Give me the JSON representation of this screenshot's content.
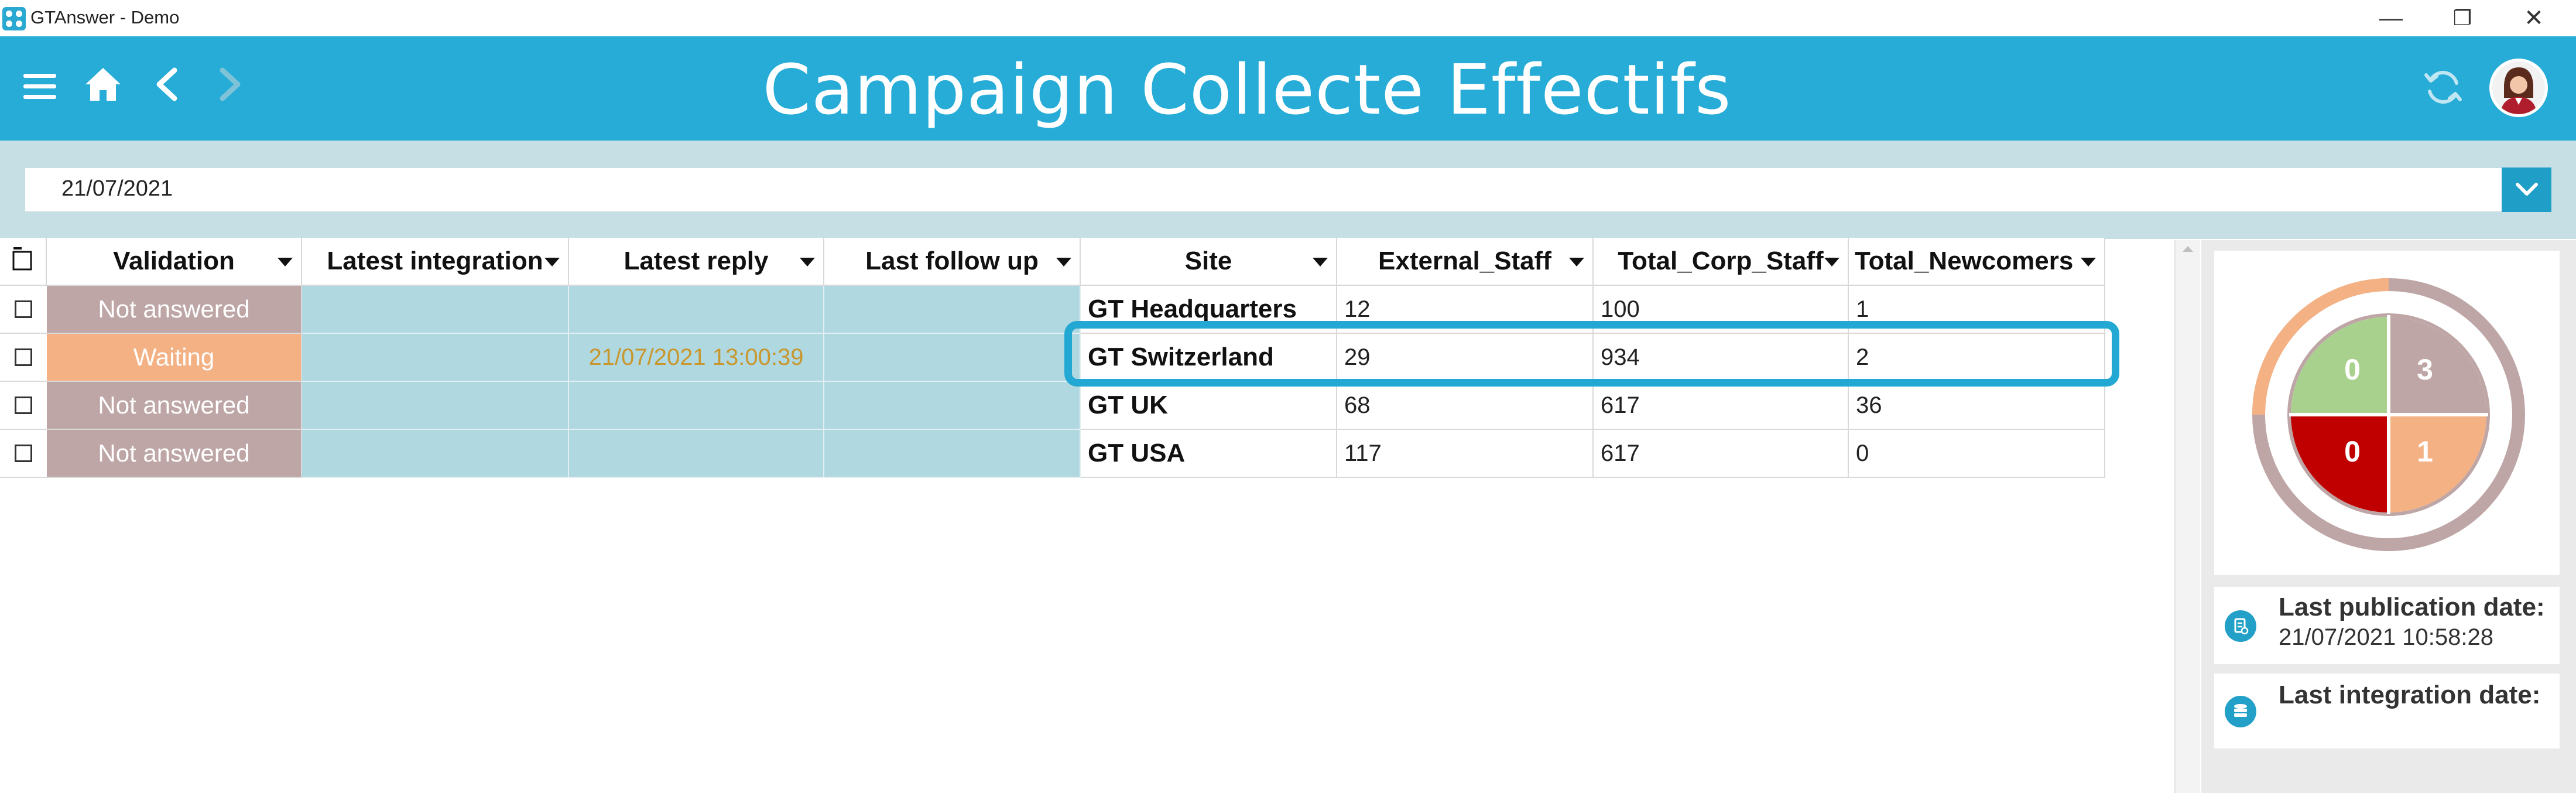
{
  "window": {
    "title": "GTAnswer - Demo",
    "minimize_glyph": "—",
    "restore_glyph": "❐",
    "close_glyph": "✕"
  },
  "header": {
    "title": "Campaign Collecte Effectifs",
    "icons": [
      "menu-icon",
      "home-icon",
      "back-icon",
      "forward-icon",
      "refresh-icon",
      "avatar"
    ]
  },
  "filter": {
    "date_value": "21/07/2021"
  },
  "table": {
    "columns": [
      "Validation",
      "Latest integration",
      "Latest reply",
      "Last follow up",
      "Site",
      "External_Staff",
      "Total_Corp_Staff",
      "Total_Newcomers"
    ],
    "rows": [
      {
        "validation": "Not answered",
        "status": "not-answered",
        "latest_integration": "",
        "latest_reply": "",
        "last_follow_up": "",
        "site": "GT Headquarters",
        "external_staff": "12",
        "total_corp_staff": "100",
        "total_newcomers": "1"
      },
      {
        "validation": "Waiting",
        "status": "waiting",
        "latest_integration": "",
        "latest_reply": "21/07/2021 13:00:39",
        "last_follow_up": "",
        "site": "GT Switzerland",
        "external_staff": "29",
        "total_corp_staff": "934",
        "total_newcomers": "2"
      },
      {
        "validation": "Not answered",
        "status": "not-answered",
        "latest_integration": "",
        "latest_reply": "",
        "last_follow_up": "",
        "site": "GT UK",
        "external_staff": "68",
        "total_corp_staff": "617",
        "total_newcomers": "36"
      },
      {
        "validation": "Not answered",
        "status": "not-answered",
        "latest_integration": "",
        "latest_reply": "",
        "last_follow_up": "",
        "site": "GT USA",
        "external_staff": "117",
        "total_corp_staff": "617",
        "total_newcomers": "0"
      }
    ],
    "highlighted_row": "GT Switzerland"
  },
  "status_summary": {
    "quadrants": [
      {
        "value": "0",
        "color": "#a9d18e"
      },
      {
        "value": "3",
        "color": "#bfa6a6"
      },
      {
        "value": "0",
        "color": "#c00000"
      },
      {
        "value": "1",
        "color": "#f4b183"
      }
    ],
    "ring_progress_fraction": 0.25,
    "ring_color": "#f4b183",
    "ring_track_color": "#bfa6a6"
  },
  "publication": {
    "label": "Last publication date:",
    "value": "21/07/2021 10:58:28"
  },
  "integration": {
    "label": "Last integration date:",
    "value": ""
  },
  "colors": {
    "header": "#26acd6",
    "band": "#c5dfe5",
    "not_answered": "#bfa6a6",
    "waiting": "#f4b183",
    "teal_cell": "#b0d8e1",
    "highlight": "#22a8d3",
    "reply_text": "#c8972e"
  }
}
